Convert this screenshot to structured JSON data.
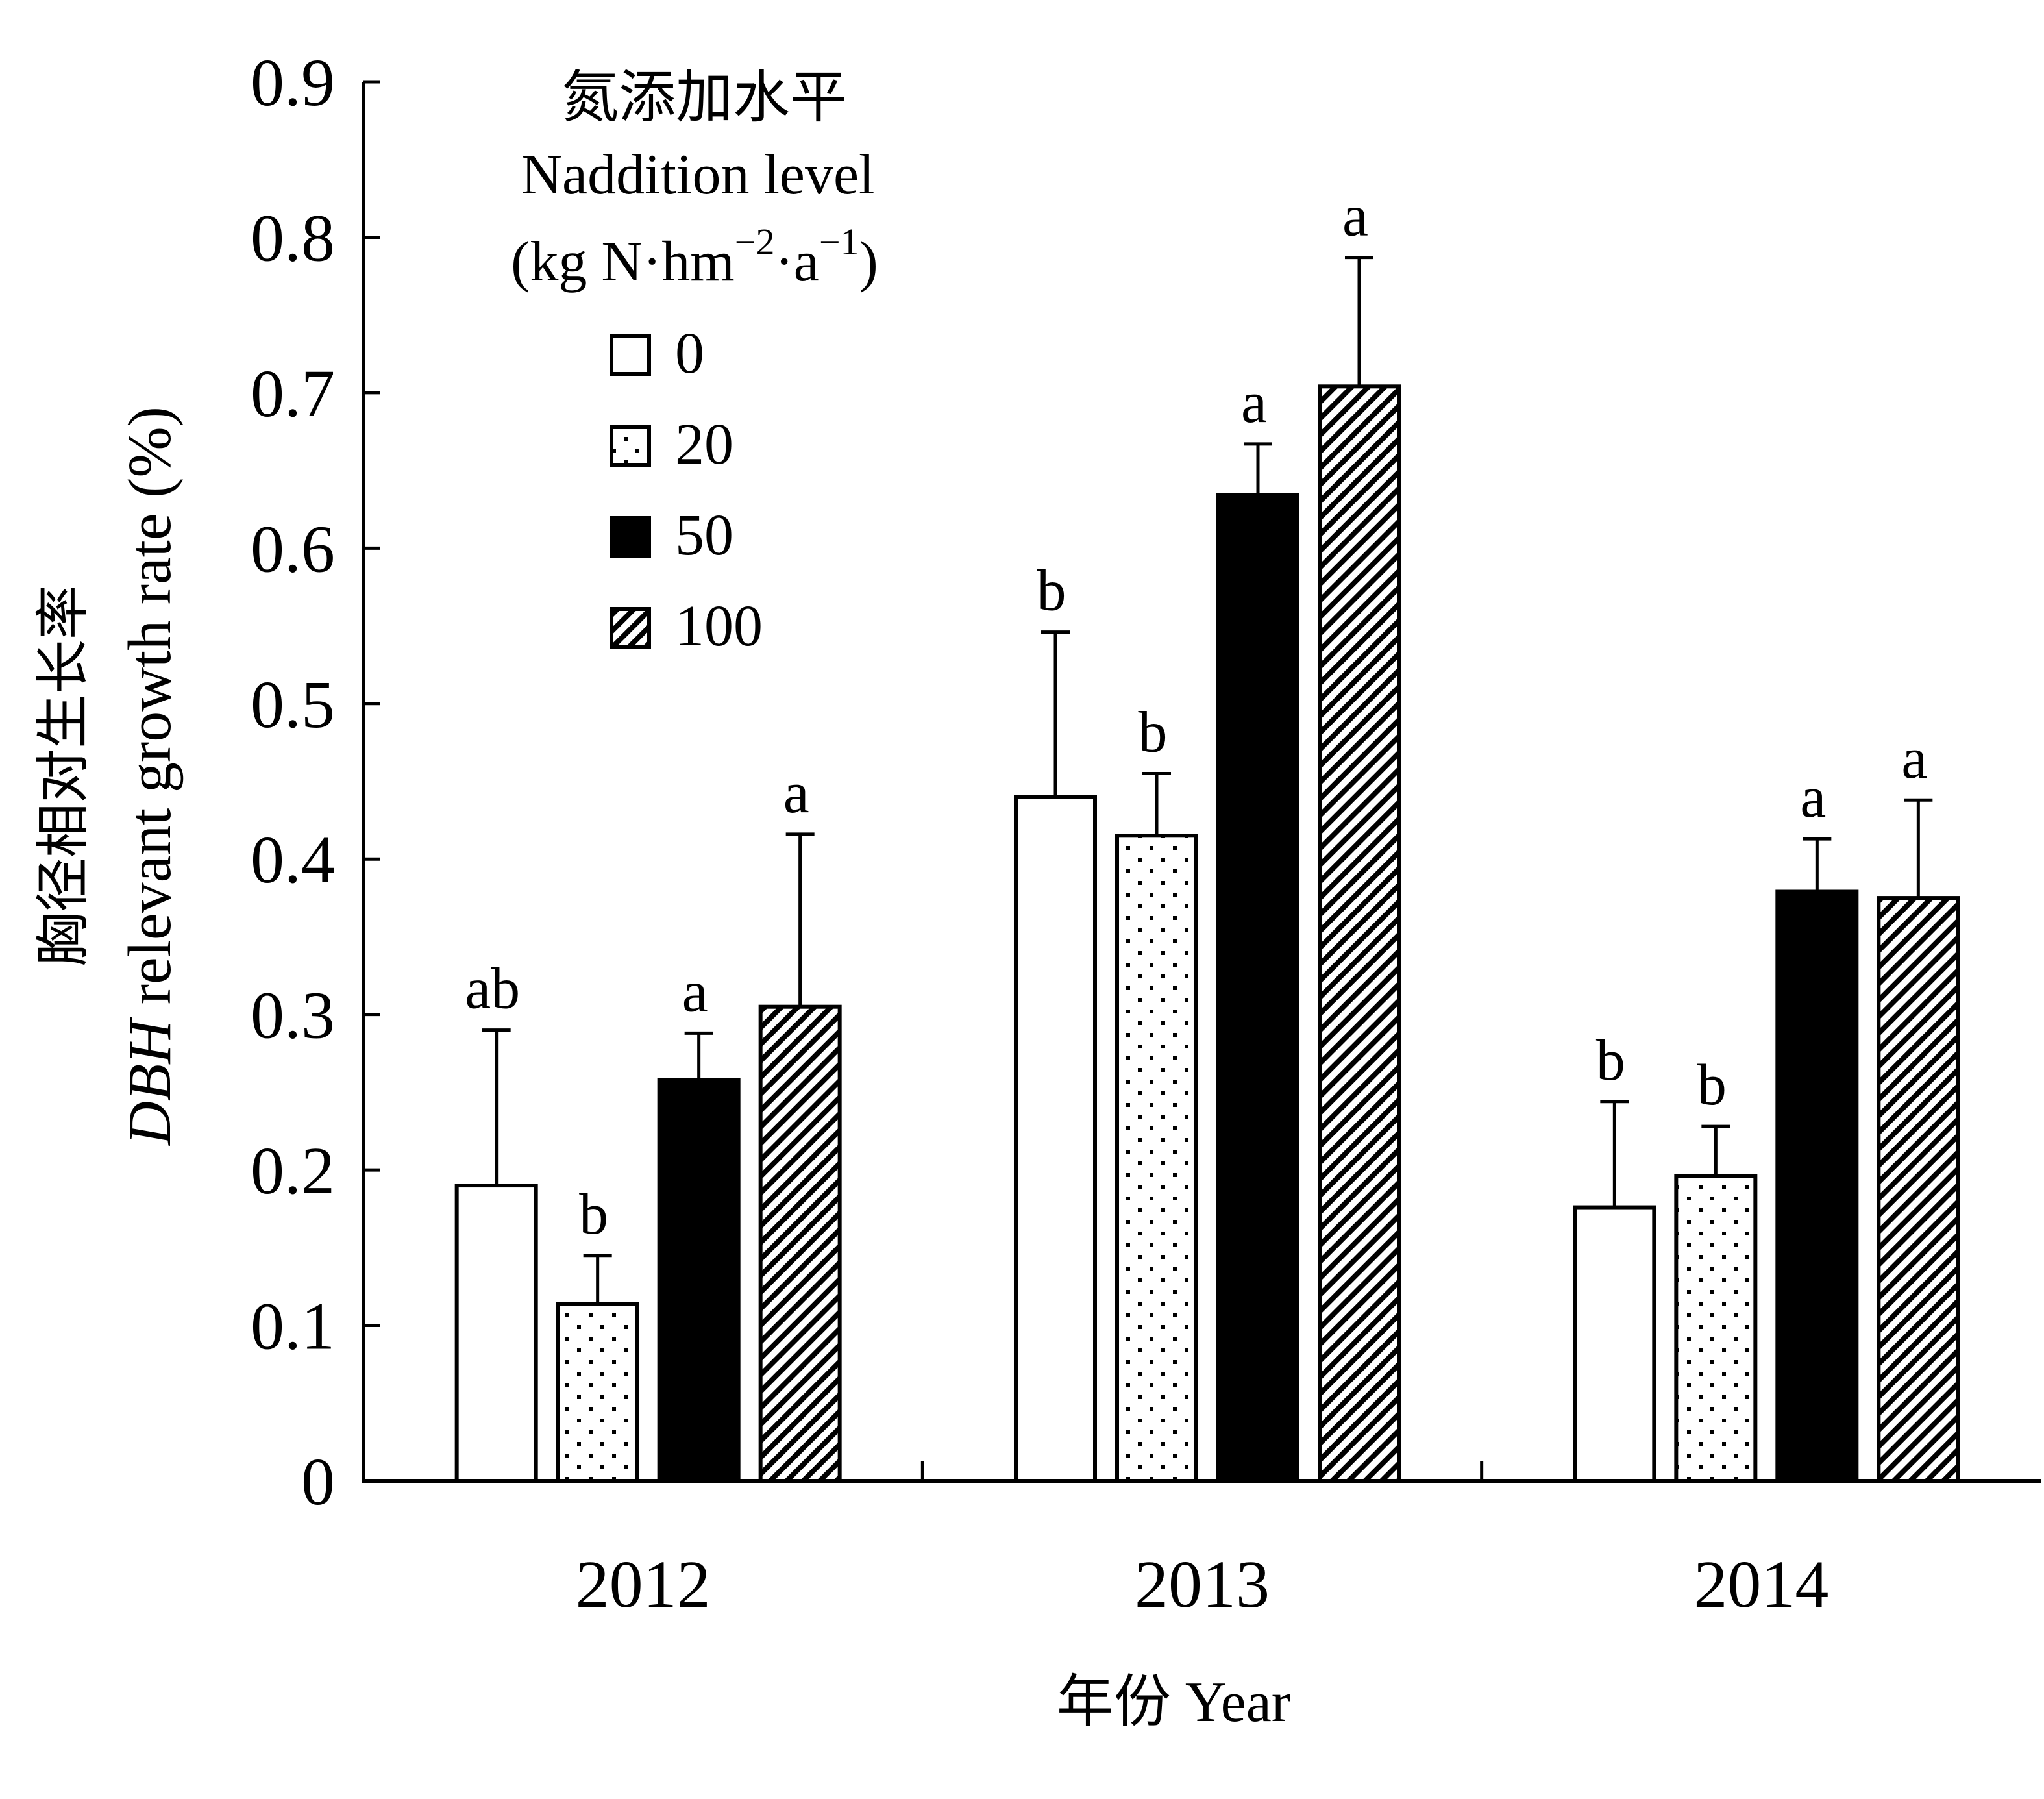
{
  "chart_data": {
    "type": "bar",
    "categories": [
      "2012",
      "2013",
      "2014"
    ],
    "series": [
      {
        "name": "0",
        "values": [
          0.19,
          0.44,
          0.176
        ],
        "errors": [
          0.1,
          0.106,
          0.068
        ],
        "labels": [
          "ab",
          "b",
          "b"
        ],
        "color": "#ffffff",
        "pattern": "none"
      },
      {
        "name": "20",
        "values": [
          0.114,
          0.415,
          0.196
        ],
        "errors": [
          0.031,
          0.04,
          0.032
        ],
        "labels": [
          "b",
          "b",
          "b"
        ],
        "color": "#ffffff",
        "pattern": "dots"
      },
      {
        "name": "50",
        "values": [
          0.258,
          0.634,
          0.379
        ],
        "errors": [
          0.03,
          0.033,
          0.034
        ],
        "labels": [
          "a",
          "a",
          "a"
        ],
        "color": "#000000",
        "pattern": "solid"
      },
      {
        "name": "100",
        "values": [
          0.305,
          0.704,
          0.375
        ],
        "errors": [
          0.111,
          0.083,
          0.063
        ],
        "labels": [
          "a",
          "a",
          "a"
        ],
        "color": "#ffffff",
        "pattern": "diagonal-hatch"
      }
    ],
    "xlabel": "年份 Year",
    "ylabel_cn": "胸径相对生长率",
    "ylabel_en_italic": "DBH",
    "ylabel_en_rest": " relevant growth rate (%)",
    "ylim": [
      0,
      0.9
    ],
    "yticks": [
      "0",
      "0.1",
      "0.2",
      "0.3",
      "0.4",
      "0.5",
      "0.6",
      "0.7",
      "0.8",
      "0.9"
    ],
    "grid": false,
    "legend": {
      "placement": "top-left",
      "title_line1": "氮添加水平",
      "title_line2": "Naddition level",
      "title_line3_a": "(kg N·hm",
      "title_line3_sup1": "−2",
      "title_line3_b": "·a",
      "title_line3_sup2": "−1",
      "title_line3_c": ")"
    }
  }
}
